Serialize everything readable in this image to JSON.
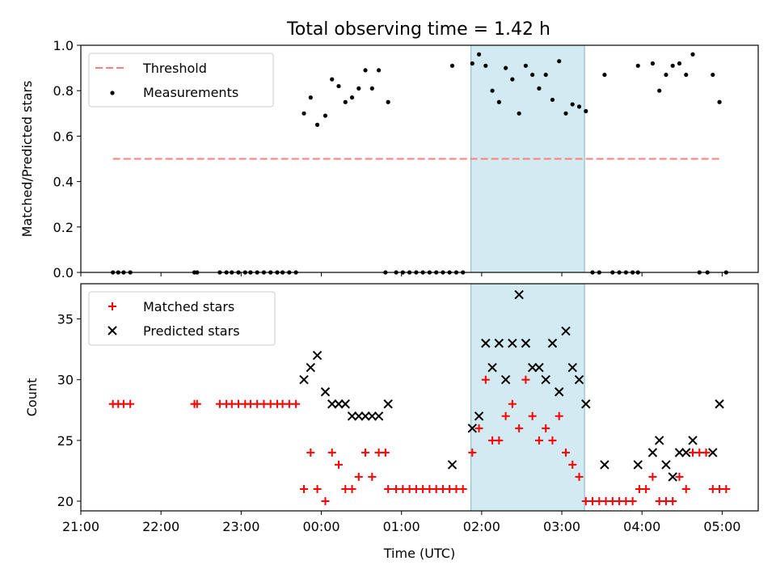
{
  "title": "Total observing time = 1.42 h",
  "colors": {
    "threshold": "#ff7f7f",
    "highlight": "#add8e6",
    "matched": "#ff0000",
    "predicted": "#000000"
  },
  "chart_data": [
    {
      "type": "scatter",
      "ylabel": "Matched/Predicted stars",
      "ylim": [
        0,
        1.0
      ],
      "yticks": [
        "0.0",
        "0.2",
        "0.4",
        "0.6",
        "0.8",
        "1.0"
      ],
      "xlim": [
        "21:00",
        "05:27"
      ],
      "highlight": {
        "start": "01:52",
        "end": "03:17"
      },
      "grid": false,
      "legend": {
        "position": "top-left",
        "entries": [
          "Threshold",
          "Measurements"
        ]
      },
      "threshold": {
        "name": "Threshold",
        "value": 0.5,
        "x": [
          "21:24",
          "04:59"
        ]
      },
      "series": [
        {
          "name": "Measurements",
          "points": [
            [
              "21:24",
              0
            ],
            [
              "21:28",
              0
            ],
            [
              "21:32",
              0
            ],
            [
              "21:37",
              0
            ],
            [
              "22:25",
              0
            ],
            [
              "22:27",
              0
            ],
            [
              "22:44",
              0
            ],
            [
              "22:49",
              0
            ],
            [
              "22:53",
              0
            ],
            [
              "22:58",
              0
            ],
            [
              "23:03",
              0
            ],
            [
              "23:07",
              0
            ],
            [
              "23:12",
              0
            ],
            [
              "23:17",
              0
            ],
            [
              "23:22",
              0
            ],
            [
              "23:27",
              0
            ],
            [
              "23:31",
              0
            ],
            [
              "23:36",
              0
            ],
            [
              "23:41",
              0
            ],
            [
              "23:47",
              0.7
            ],
            [
              "23:52",
              0.77
            ],
            [
              "23:57",
              0.65
            ],
            [
              "00:03",
              0.69
            ],
            [
              "00:08",
              0.85
            ],
            [
              "00:13",
              0.82
            ],
            [
              "00:18",
              0.75
            ],
            [
              "00:23",
              0.77
            ],
            [
              "00:28",
              0.81
            ],
            [
              "00:33",
              0.89
            ],
            [
              "00:38",
              0.81
            ],
            [
              "00:43",
              0.89
            ],
            [
              "00:50",
              0.75
            ],
            [
              "00:48",
              0
            ],
            [
              "00:56",
              0
            ],
            [
              "01:01",
              0
            ],
            [
              "01:06",
              0
            ],
            [
              "01:11",
              0
            ],
            [
              "01:16",
              0
            ],
            [
              "01:21",
              0
            ],
            [
              "01:26",
              0
            ],
            [
              "01:31",
              0
            ],
            [
              "01:36",
              0
            ],
            [
              "01:41",
              0
            ],
            [
              "01:46",
              0
            ],
            [
              "01:38",
              0.91
            ],
            [
              "01:53",
              0.92
            ],
            [
              "01:58",
              0.96
            ],
            [
              "02:03",
              0.91
            ],
            [
              "02:08",
              0.8
            ],
            [
              "02:13",
              0.75
            ],
            [
              "02:18",
              0.9
            ],
            [
              "02:23",
              0.85
            ],
            [
              "02:28",
              0.7
            ],
            [
              "02:33",
              0.91
            ],
            [
              "02:38",
              0.87
            ],
            [
              "02:43",
              0.81
            ],
            [
              "02:48",
              0.87
            ],
            [
              "02:53",
              0.76
            ],
            [
              "02:58",
              0.93
            ],
            [
              "03:03",
              0.7
            ],
            [
              "03:08",
              0.74
            ],
            [
              "03:13",
              0.73
            ],
            [
              "03:18",
              0.71
            ],
            [
              "03:23",
              0
            ],
            [
              "03:28",
              0
            ],
            [
              "03:38",
              0
            ],
            [
              "03:43",
              0
            ],
            [
              "03:48",
              0
            ],
            [
              "03:53",
              0
            ],
            [
              "03:57",
              0
            ],
            [
              "03:32",
              0.87
            ],
            [
              "03:57",
              0.91
            ],
            [
              "04:08",
              0.92
            ],
            [
              "04:13",
              0.8
            ],
            [
              "04:18",
              0.87
            ],
            [
              "04:23",
              0.91
            ],
            [
              "04:28",
              0.92
            ],
            [
              "04:33",
              0.87
            ],
            [
              "04:38",
              0.96
            ],
            [
              "04:53",
              0.87
            ],
            [
              "04:58",
              0.75
            ],
            [
              "04:43",
              0
            ],
            [
              "04:49",
              0
            ],
            [
              "05:03",
              0
            ]
          ]
        }
      ]
    },
    {
      "type": "scatter",
      "xlabel": "Time (UTC)",
      "ylabel": "Count",
      "ylim": [
        19.2,
        37.9
      ],
      "yticks": [
        "20",
        "25",
        "30",
        "35"
      ],
      "xticks": [
        "21:00",
        "22:00",
        "23:00",
        "00:00",
        "01:00",
        "02:00",
        "03:00",
        "04:00",
        "05:00"
      ],
      "xlim": [
        "21:00",
        "05:27"
      ],
      "highlight": {
        "start": "01:52",
        "end": "03:17"
      },
      "grid": false,
      "legend": {
        "position": "top-left",
        "entries": [
          "Matched stars",
          "Predicted stars"
        ]
      },
      "series": [
        {
          "name": "Matched stars",
          "marker": "+",
          "points": [
            [
              "21:24",
              28
            ],
            [
              "21:28",
              28
            ],
            [
              "21:32",
              28
            ],
            [
              "21:37",
              28
            ],
            [
              "22:25",
              28
            ],
            [
              "22:27",
              28
            ],
            [
              "22:44",
              28
            ],
            [
              "22:49",
              28
            ],
            [
              "22:53",
              28
            ],
            [
              "22:58",
              28
            ],
            [
              "23:03",
              28
            ],
            [
              "23:07",
              28
            ],
            [
              "23:12",
              28
            ],
            [
              "23:17",
              28
            ],
            [
              "23:22",
              28
            ],
            [
              "23:27",
              28
            ],
            [
              "23:31",
              28
            ],
            [
              "23:36",
              28
            ],
            [
              "23:41",
              28
            ],
            [
              "23:47",
              21
            ],
            [
              "23:52",
              24
            ],
            [
              "23:57",
              21
            ],
            [
              "00:03",
              20
            ],
            [
              "00:08",
              24
            ],
            [
              "00:13",
              23
            ],
            [
              "00:18",
              21
            ],
            [
              "00:23",
              21
            ],
            [
              "00:28",
              22
            ],
            [
              "00:33",
              24
            ],
            [
              "00:38",
              22
            ],
            [
              "00:43",
              24
            ],
            [
              "00:48",
              24
            ],
            [
              "00:50",
              21
            ],
            [
              "00:56",
              21
            ],
            [
              "01:01",
              21
            ],
            [
              "01:06",
              21
            ],
            [
              "01:11",
              21
            ],
            [
              "01:16",
              21
            ],
            [
              "01:21",
              21
            ],
            [
              "01:26",
              21
            ],
            [
              "01:31",
              21
            ],
            [
              "01:36",
              21
            ],
            [
              "01:41",
              21
            ],
            [
              "01:46",
              21
            ],
            [
              "01:53",
              24
            ],
            [
              "01:58",
              26
            ],
            [
              "02:03",
              30
            ],
            [
              "02:08",
              25
            ],
            [
              "02:13",
              25
            ],
            [
              "02:18",
              27
            ],
            [
              "02:23",
              28
            ],
            [
              "02:28",
              26
            ],
            [
              "02:33",
              30
            ],
            [
              "02:38",
              27
            ],
            [
              "02:43",
              25
            ],
            [
              "02:48",
              26
            ],
            [
              "02:53",
              25
            ],
            [
              "02:58",
              27
            ],
            [
              "03:03",
              24
            ],
            [
              "03:08",
              23
            ],
            [
              "03:13",
              22
            ],
            [
              "03:18",
              20
            ],
            [
              "03:23",
              20
            ],
            [
              "03:28",
              20
            ],
            [
              "03:33",
              20
            ],
            [
              "03:38",
              20
            ],
            [
              "03:43",
              20
            ],
            [
              "03:48",
              20
            ],
            [
              "03:53",
              20
            ],
            [
              "03:58",
              21
            ],
            [
              "04:03",
              21
            ],
            [
              "04:08",
              22
            ],
            [
              "04:13",
              20
            ],
            [
              "04:18",
              20
            ],
            [
              "04:23",
              20
            ],
            [
              "04:28",
              22
            ],
            [
              "04:33",
              21
            ],
            [
              "04:38",
              24
            ],
            [
              "04:43",
              24
            ],
            [
              "04:48",
              24
            ],
            [
              "04:53",
              21
            ],
            [
              "04:58",
              21
            ],
            [
              "05:03",
              21
            ]
          ]
        },
        {
          "name": "Predicted stars",
          "marker": "x",
          "points": [
            [
              "23:47",
              30
            ],
            [
              "23:52",
              31
            ],
            [
              "23:57",
              32
            ],
            [
              "00:03",
              29
            ],
            [
              "00:08",
              28
            ],
            [
              "00:13",
              28
            ],
            [
              "00:18",
              28
            ],
            [
              "00:23",
              27
            ],
            [
              "00:28",
              27
            ],
            [
              "00:33",
              27
            ],
            [
              "00:38",
              27
            ],
            [
              "00:43",
              27
            ],
            [
              "00:50",
              28
            ],
            [
              "01:38",
              23
            ],
            [
              "01:53",
              26
            ],
            [
              "01:58",
              27
            ],
            [
              "02:03",
              33
            ],
            [
              "02:08",
              31
            ],
            [
              "02:13",
              33
            ],
            [
              "02:23",
              33
            ],
            [
              "02:18",
              30
            ],
            [
              "02:28",
              37
            ],
            [
              "02:33",
              33
            ],
            [
              "02:38",
              31
            ],
            [
              "02:43",
              31
            ],
            [
              "02:48",
              30
            ],
            [
              "02:53",
              33
            ],
            [
              "02:58",
              29
            ],
            [
              "03:03",
              34
            ],
            [
              "03:08",
              31
            ],
            [
              "03:13",
              30
            ],
            [
              "03:18",
              28
            ],
            [
              "03:32",
              23
            ],
            [
              "03:57",
              23
            ],
            [
              "04:08",
              24
            ],
            [
              "04:13",
              25
            ],
            [
              "04:18",
              23
            ],
            [
              "04:23",
              22
            ],
            [
              "04:28",
              24
            ],
            [
              "04:33",
              24
            ],
            [
              "04:38",
              25
            ],
            [
              "04:53",
              24
            ],
            [
              "04:58",
              28
            ]
          ]
        }
      ]
    }
  ]
}
